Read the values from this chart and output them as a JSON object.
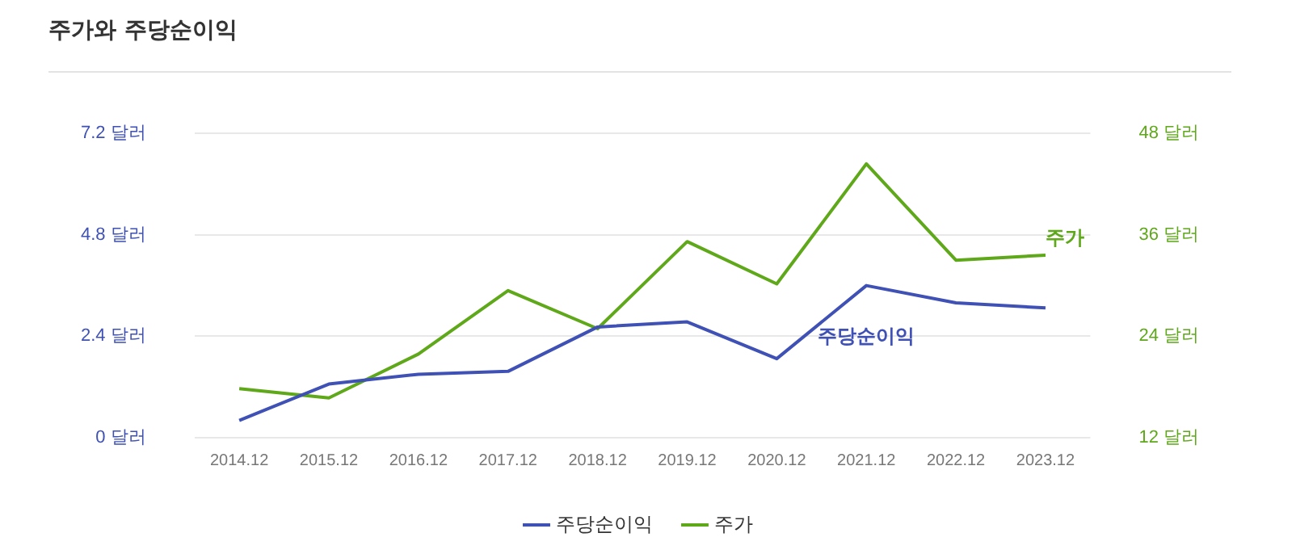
{
  "chart_data": {
    "type": "line",
    "title": "주가와 주당순이익",
    "categories": [
      "2014.12",
      "2015.12",
      "2016.12",
      "2017.12",
      "2018.12",
      "2019.12",
      "2020.12",
      "2021.12",
      "2022.12",
      "2023.12"
    ],
    "series": [
      {
        "name": "주당순이익",
        "color": "#3f51b5",
        "values": [
          0.41,
          1.27,
          1.5,
          1.57,
          2.62,
          2.74,
          1.87,
          3.6,
          3.19,
          3.07
        ]
      },
      {
        "name": "주가",
        "color": "#5ea81a",
        "axis": "y2",
        "values": [
          17.8,
          16.7,
          21.9,
          29.4,
          24.9,
          35.2,
          30.2,
          44.4,
          33.0,
          33.6
        ]
      }
    ],
    "ylim": [
      0,
      7.2
    ],
    "yticks": [
      {
        "value": 0,
        "label": "0 달러"
      },
      {
        "value": 2.4,
        "label": "2.4 달러"
      },
      {
        "value": 4.8,
        "label": "4.8 달러"
      },
      {
        "value": 7.2,
        "label": "7.2 달러"
      }
    ],
    "y2lim": [
      12,
      48
    ],
    "y2ticks": [
      {
        "value": 12,
        "label": "12 달러"
      },
      {
        "value": 24,
        "label": "24 달러"
      },
      {
        "value": 36,
        "label": "36 달러"
      },
      {
        "value": 48,
        "label": "48 달러"
      }
    ],
    "grid": "y",
    "legend": "bottom",
    "marker": "none",
    "line_style": "solid"
  }
}
